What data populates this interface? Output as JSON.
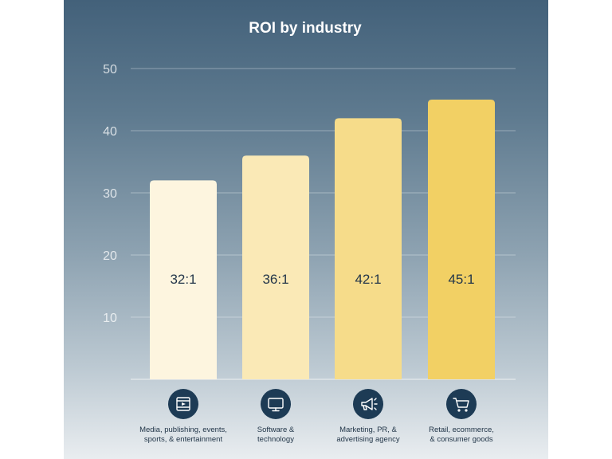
{
  "chart_data": {
    "type": "bar",
    "title": "ROI by industry",
    "xlabel": "",
    "ylabel": "",
    "ylim": [
      0,
      50
    ],
    "yticks": [
      10,
      20,
      30,
      40,
      50
    ],
    "grid": true,
    "categories": [
      "Media, publishing, events, sports, & entertainment",
      "Software & technology",
      "Marketing, PR, & advertising agency",
      "Retail, ecommerce, & consumer goods"
    ],
    "category_label_lines": [
      [
        "Media, publishing, events,",
        "sports, & entertainment"
      ],
      [
        "Software &",
        "technology"
      ],
      [
        "Marketing, PR, &",
        "advertising agency"
      ],
      [
        "Retail, ecommerce,",
        "& consumer goods"
      ]
    ],
    "values": [
      32,
      36,
      42,
      45
    ],
    "data_labels": [
      "32:1",
      "36:1",
      "42:1",
      "45:1"
    ],
    "bar_colors": [
      "#fdf5df",
      "#fae9b6",
      "#f6dc8a",
      "#f2d064"
    ],
    "icons": [
      "media-player-icon",
      "monitor-icon",
      "megaphone-icon",
      "shopping-cart-icon"
    ]
  }
}
